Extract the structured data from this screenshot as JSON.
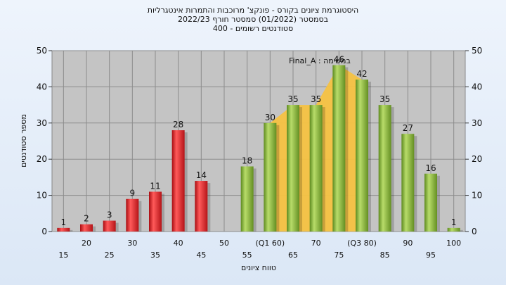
{
  "chart_data": {
    "type": "bar",
    "title_lines": [
      "היסטוגרמת ציונים בקורס - פונקצ' מרוכבות והתמרות אינטגרליות",
      "בסמסטר  (01/2022)  סמסטר חורף  2022/23",
      "סטודנטים רשומים - 400"
    ],
    "annotation": "במשימה : Final_A",
    "xlabel": "טווח ציונים",
    "ylabel": "מספר סטודנטים",
    "ylim": [
      0,
      50
    ],
    "yticks": [
      0,
      10,
      20,
      30,
      40,
      50
    ],
    "x_tick_labels": [
      {
        "x": 15,
        "label": "15",
        "row": 2
      },
      {
        "x": 20,
        "label": "20",
        "row": 1
      },
      {
        "x": 25,
        "label": "25",
        "row": 2
      },
      {
        "x": 30,
        "label": "30",
        "row": 1
      },
      {
        "x": 35,
        "label": "35",
        "row": 2
      },
      {
        "x": 40,
        "label": "40",
        "row": 1
      },
      {
        "x": 45,
        "label": "45",
        "row": 2
      },
      {
        "x": 50,
        "label": "50",
        "row": 1
      },
      {
        "x": 55,
        "label": "55",
        "row": 2
      },
      {
        "x": 60,
        "label": "(Q1 60)",
        "row": 1
      },
      {
        "x": 65,
        "label": "65",
        "row": 2
      },
      {
        "x": 70,
        "label": "70",
        "row": 1
      },
      {
        "x": 75,
        "label": "75",
        "row": 2
      },
      {
        "x": 80,
        "label": "(Q3 80)",
        "row": 1
      },
      {
        "x": 85,
        "label": "85",
        "row": 2
      },
      {
        "x": 90,
        "label": "90",
        "row": 1
      },
      {
        "x": 95,
        "label": "95",
        "row": 2
      },
      {
        "x": 100,
        "label": "100",
        "row": 1
      }
    ],
    "bars": [
      {
        "x": 15,
        "value": 1,
        "color": "red"
      },
      {
        "x": 20,
        "value": 2,
        "color": "red"
      },
      {
        "x": 25,
        "value": 3,
        "color": "red"
      },
      {
        "x": 30,
        "value": 9,
        "color": "red"
      },
      {
        "x": 35,
        "value": 11,
        "color": "red"
      },
      {
        "x": 40,
        "value": 28,
        "color": "red"
      },
      {
        "x": 45,
        "value": 14,
        "color": "red"
      },
      {
        "x": 55,
        "value": 18,
        "color": "green"
      },
      {
        "x": 60,
        "value": 30,
        "color": "green"
      },
      {
        "x": 65,
        "value": 35,
        "color": "green"
      },
      {
        "x": 70,
        "value": 35,
        "color": "green"
      },
      {
        "x": 75,
        "value": 46,
        "color": "green"
      },
      {
        "x": 80,
        "value": 42,
        "color": "green"
      },
      {
        "x": 85,
        "value": 35,
        "color": "green"
      },
      {
        "x": 90,
        "value": 27,
        "color": "green"
      },
      {
        "x": 95,
        "value": 16,
        "color": "green"
      },
      {
        "x": 100,
        "value": 1,
        "color": "green"
      }
    ],
    "iqr_band": {
      "from": 60,
      "to": 80
    },
    "colors": {
      "red": "#e0262a",
      "green": "#8cbb3c",
      "band": "#f5c242",
      "plot_bg": "#c4c4c4"
    }
  }
}
